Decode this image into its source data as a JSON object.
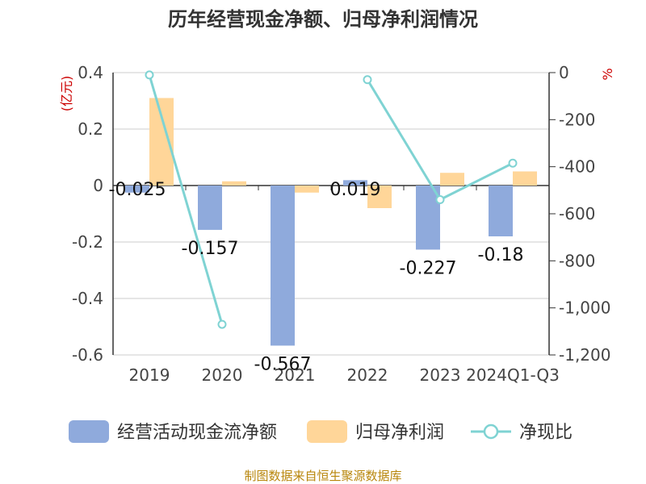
{
  "title": "历年经营现金净额、归母净利润情况",
  "source": "制图数据来自恒生聚源数据库",
  "chart_data": {
    "type": "bar",
    "categories": [
      "2019",
      "2020",
      "2021",
      "2022",
      "2023",
      "2024Q1-Q3"
    ],
    "y_left": {
      "unit": "(亿元)",
      "ticks": [
        "0.4",
        "0.2",
        "0",
        "-0.2",
        "-0.4",
        "-0.6"
      ],
      "ylim": [
        -0.6,
        0.4
      ]
    },
    "y_right": {
      "unit": "%",
      "ticks": [
        "0",
        "-200",
        "-400",
        "-600",
        "-800",
        "-1,000",
        "-1,200"
      ],
      "ylim": [
        -1200,
        0
      ]
    },
    "series": [
      {
        "name": "经营活动现金流净额",
        "type": "bar",
        "axis": "left",
        "color": "#8faadc",
        "values": [
          -0.025,
          -0.157,
          -0.567,
          0.019,
          -0.227,
          -0.18
        ],
        "labels": [
          "-0.025",
          "-0.157",
          "-0.567",
          "0.019",
          "-0.227",
          "-0.18"
        ]
      },
      {
        "name": "归母净利润",
        "type": "bar",
        "axis": "left",
        "color": "#ffd699",
        "values": [
          0.31,
          0.015,
          -0.025,
          -0.08,
          0.045,
          0.05
        ]
      },
      {
        "name": "净现比",
        "type": "line",
        "axis": "right",
        "color": "#7fd3d3",
        "values": [
          -10,
          -1070,
          null,
          -30,
          -540,
          -385
        ]
      }
    ],
    "legend": "bottom",
    "grid": true
  }
}
